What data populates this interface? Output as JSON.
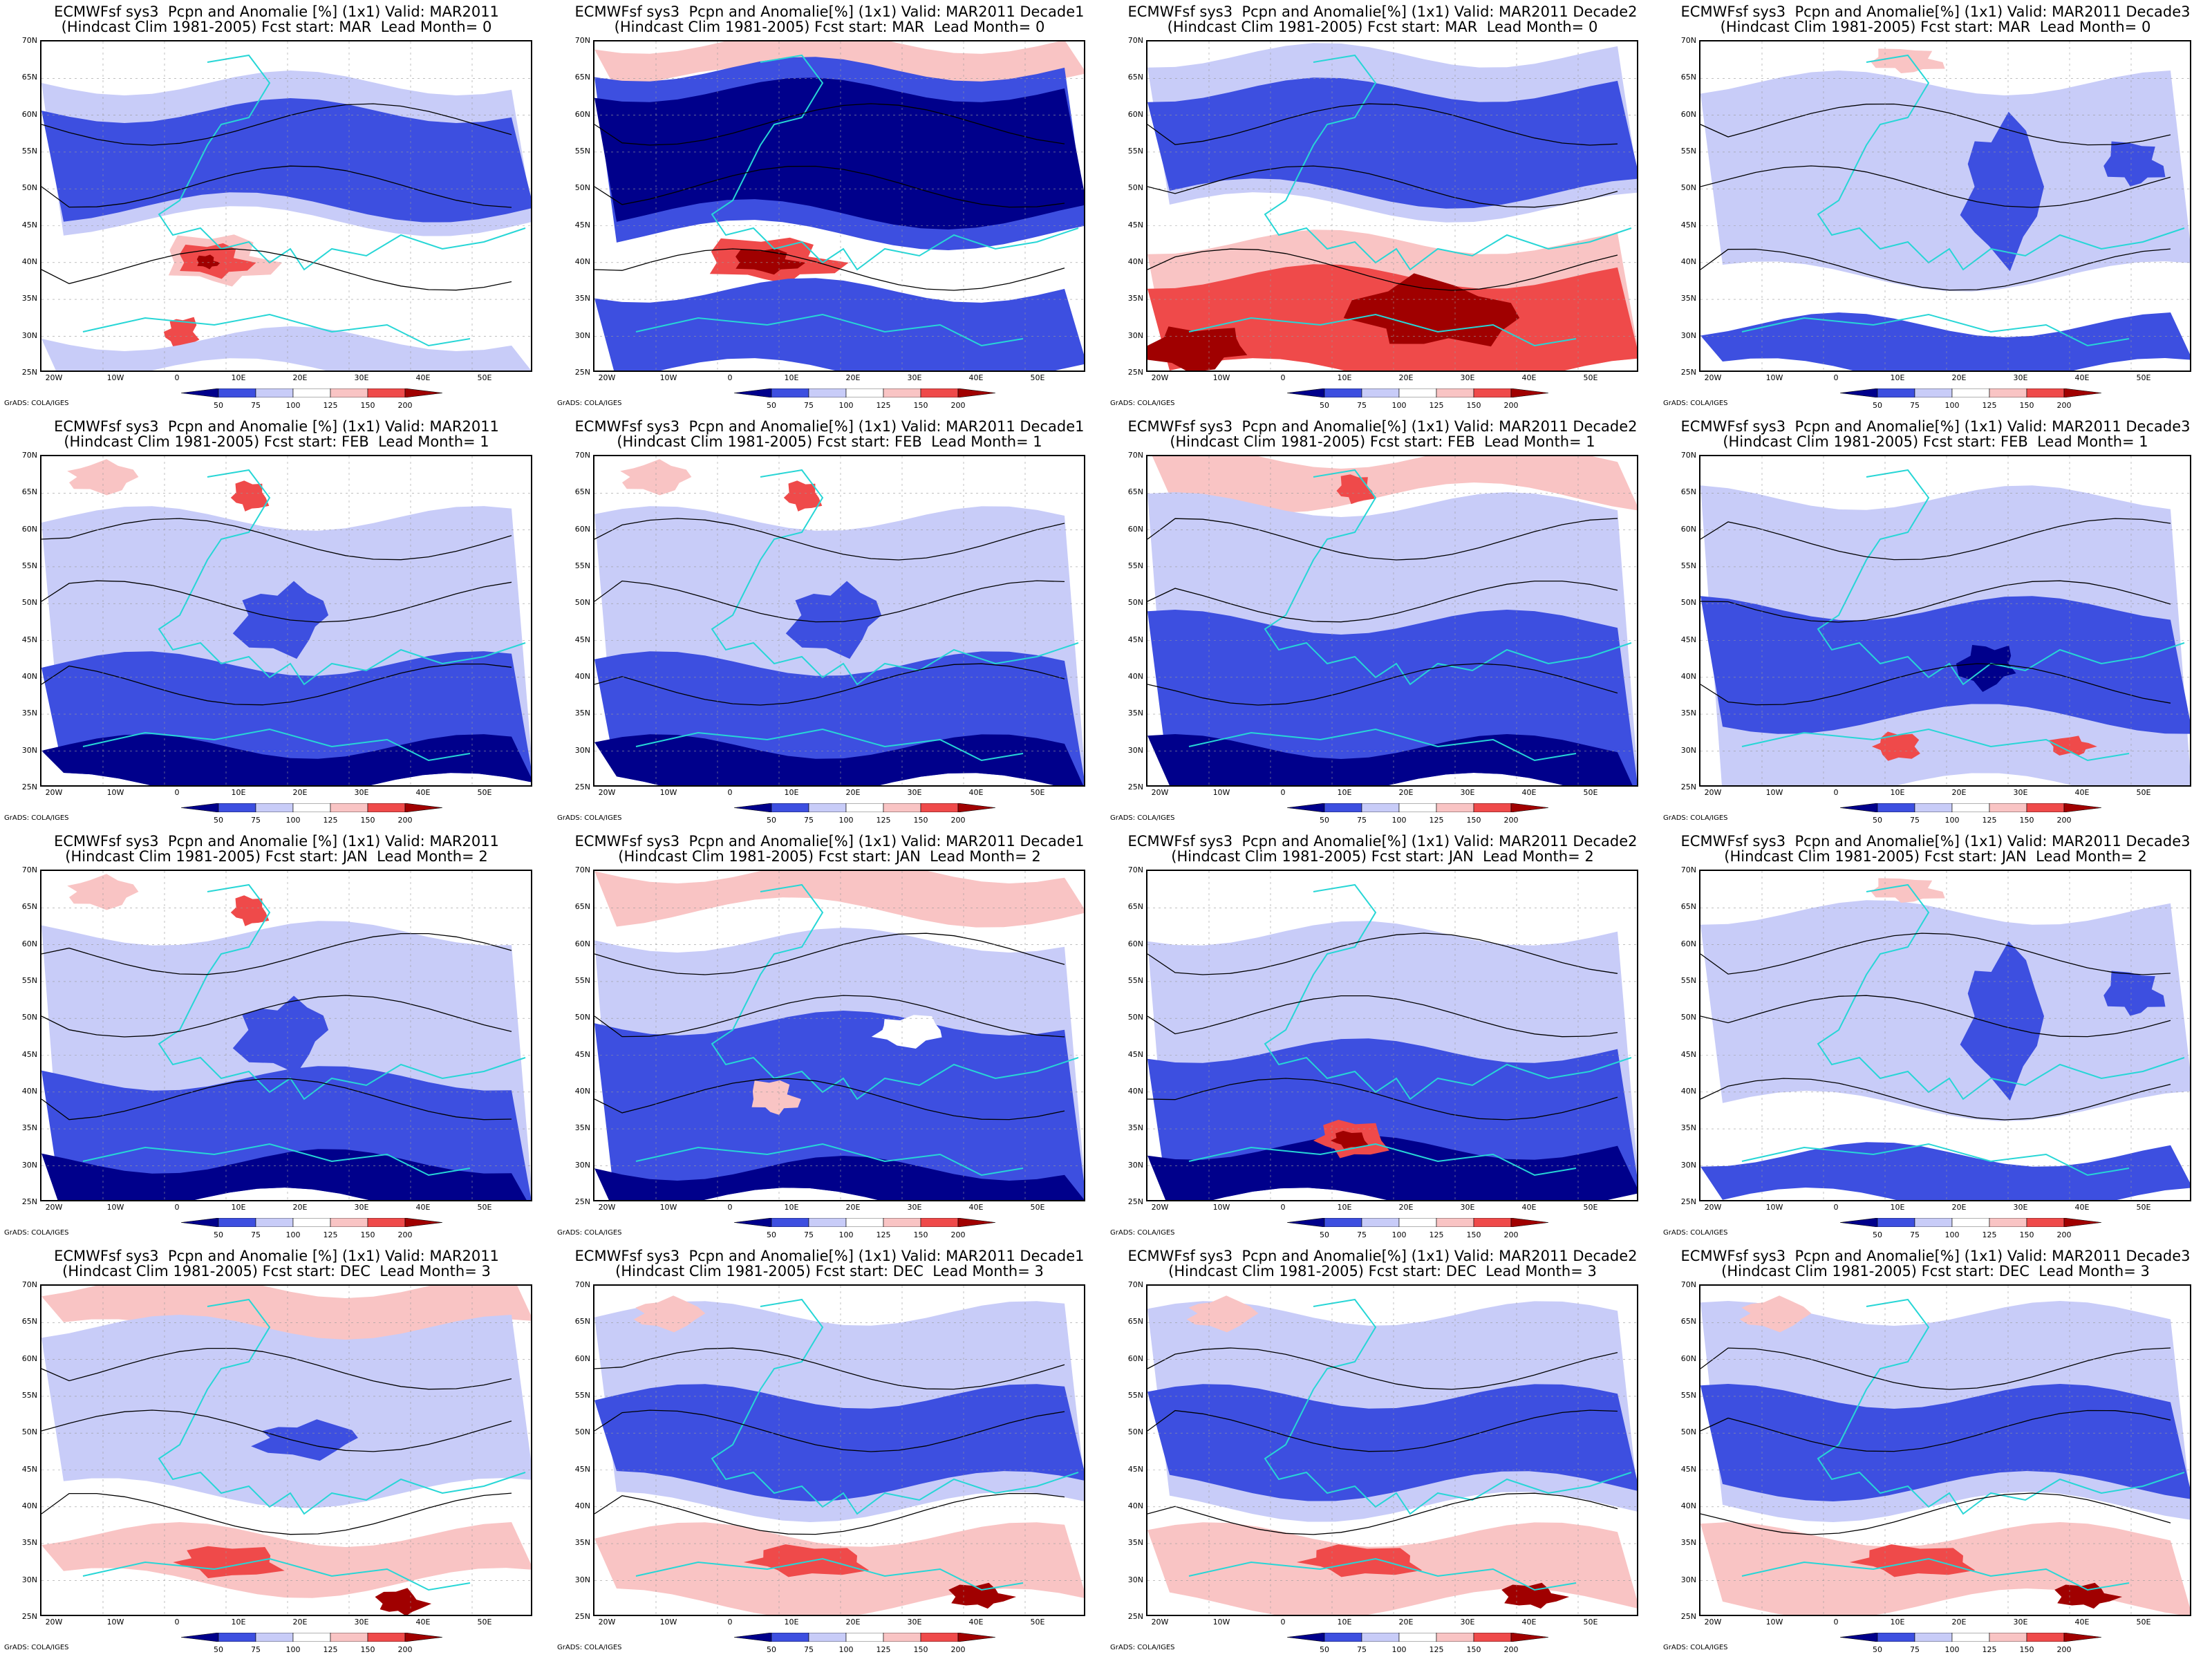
{
  "legend": {
    "ticks": [
      "50",
      "75",
      "100",
      "125",
      "150",
      "200"
    ],
    "colors": [
      "#00008b",
      "#3d4fe0",
      "#c8ccf8",
      "#ffffff",
      "#f9c4c4",
      "#ef4a4a",
      "#a00000"
    ]
  },
  "axes": {
    "lat_labels": [
      "70N",
      "65N",
      "60N",
      "55N",
      "50N",
      "45N",
      "40N",
      "35N",
      "30N",
      "25N"
    ],
    "lon_labels": [
      "20W",
      "10W",
      "0",
      "10E",
      "20E",
      "30E",
      "40E",
      "50E"
    ]
  },
  "credit": "GrADS: COLA/IGES",
  "colors": {
    "coast": "#27d6d6",
    "contour": "#000000"
  },
  "panels": [
    {
      "title1": "ECMWFsf sys3  Pcpn and Anomalie [%] (1x1) Valid: MAR2011",
      "title2": "(Hindcast Clim 1981-2005) Fcst start: MAR  Lead Month= 0",
      "pattern": "blue_band_red_south"
    },
    {
      "title1": "ECMWFsf sys3  Pcpn and Anomalie[%] (1x1) Valid: MAR2011 Decade1",
      "title2": "(Hindcast Clim 1981-2005) Fcst start: MAR  Lead Month= 0",
      "pattern": "deep_blue_red_med"
    },
    {
      "title1": "ECMWFsf sys3  Pcpn and Anomalie[%] (1x1) Valid: MAR2011 Decade2",
      "title2": "(Hindcast Clim 1981-2005) Fcst start: MAR  Lead Month= 0",
      "pattern": "blue_north_red_south"
    },
    {
      "title1": "ECMWFsf sys3  Pcpn and Anomalie[%] (1x1) Valid: MAR2011 Decade3",
      "title2": "(Hindcast Clim 1981-2005) Fcst start: MAR  Lead Month= 0",
      "pattern": "light_mixed"
    },
    {
      "title1": "ECMWFsf sys3  Pcpn and Anomalie [%] (1x1) Valid: MAR2011",
      "title2": "(Hindcast Clim 1981-2005) Fcst start: FEB  Lead Month= 1",
      "pattern": "light_blue_south"
    },
    {
      "title1": "ECMWFsf sys3  Pcpn and Anomalie[%] (1x1) Valid: MAR2011 Decade1",
      "title2": "(Hindcast Clim 1981-2005) Fcst start: FEB  Lead Month= 1",
      "pattern": "light_blue_south"
    },
    {
      "title1": "ECMWFsf sys3  Pcpn and Anomalie[%] (1x1) Valid: MAR2011 Decade2",
      "title2": "(Hindcast Clim 1981-2005) Fcst start: FEB  Lead Month= 1",
      "pattern": "blue_south_red_north"
    },
    {
      "title1": "ECMWFsf sys3  Pcpn and Anomalie[%] (1x1) Valid: MAR2011 Decade3",
      "title2": "(Hindcast Clim 1981-2005) Fcst start: FEB  Lead Month= 1",
      "pattern": "blue_mid_red_spots"
    },
    {
      "title1": "ECMWFsf sys3  Pcpn and Anomalie [%] (1x1) Valid: MAR2011",
      "title2": "(Hindcast Clim 1981-2005) Fcst start: JAN  Lead Month= 2",
      "pattern": "light_blue_south"
    },
    {
      "title1": "ECMWFsf sys3  Pcpn and Anomalie[%] (1x1) Valid: MAR2011 Decade1",
      "title2": "(Hindcast Clim 1981-2005) Fcst start: JAN  Lead Month= 2",
      "pattern": "blue_mid_red_north"
    },
    {
      "title1": "ECMWFsf sys3  Pcpn and Anomalie[%] (1x1) Valid: MAR2011 Decade2",
      "title2": "(Hindcast Clim 1981-2005) Fcst start: JAN  Lead Month= 2",
      "pattern": "blue_south_red_spot"
    },
    {
      "title1": "ECMWFsf sys3  Pcpn and Anomalie[%] (1x1) Valid: MAR2011 Decade3",
      "title2": "(Hindcast Clim 1981-2005) Fcst start: JAN  Lead Month= 2",
      "pattern": "light_mixed"
    },
    {
      "title1": "ECMWFsf sys3  Pcpn and Anomalie [%] (1x1) Valid: MAR2011",
      "title2": "(Hindcast Clim 1981-2005) Fcst start: DEC  Lead Month= 3",
      "pattern": "light_red_south"
    },
    {
      "title1": "ECMWFsf sys3  Pcpn and Anomalie[%] (1x1) Valid: MAR2011 Decade1",
      "title2": "(Hindcast Clim 1981-2005) Fcst start: DEC  Lead Month= 3",
      "pattern": "blue_mid_red_south"
    },
    {
      "title1": "ECMWFsf sys3  Pcpn and Anomalie[%] (1x1) Valid: MAR2011 Decade2",
      "title2": "(Hindcast Clim 1981-2005) Fcst start: DEC  Lead Month= 3",
      "pattern": "blue_mid_red_south"
    },
    {
      "title1": "ECMWFsf sys3  Pcpn and Anomalie[%] (1x1) Valid: MAR2011 Decade3",
      "title2": "(Hindcast Clim 1981-2005) Fcst start: DEC  Lead Month= 3",
      "pattern": "blue_mid_red_south"
    }
  ]
}
